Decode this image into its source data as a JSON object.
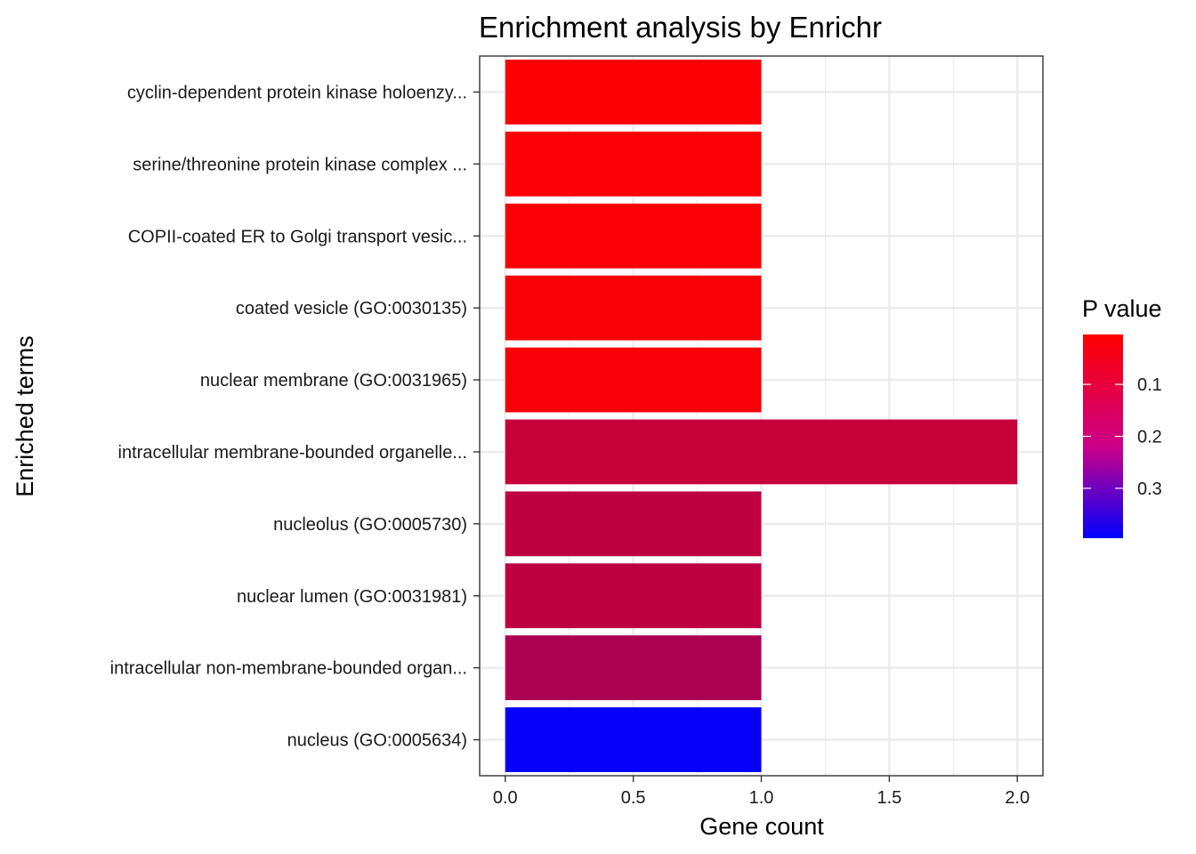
{
  "chart_data": {
    "type": "bar",
    "orientation": "horizontal",
    "title": "Enrichment analysis by Enrichr",
    "xlabel": "Gene count",
    "ylabel": "Enriched terms",
    "xlim": [
      -0.1,
      2.1
    ],
    "xticks": [
      0.0,
      0.5,
      1.0,
      1.5,
      2.0
    ],
    "xtick_labels": [
      "0.0",
      "0.5",
      "1.0",
      "1.5",
      "2.0"
    ],
    "grid": true,
    "categories": [
      "cyclin-dependent protein kinase holoenzy...",
      "serine/threonine protein kinase complex ...",
      "COPII-coated ER to Golgi transport vesic...",
      "coated vesicle (GO:0030135)",
      "nuclear membrane (GO:0031965)",
      "intracellular membrane-bounded organelle...",
      "nucleolus (GO:0005730)",
      "nuclear lumen (GO:0031981)",
      "intracellular non-membrane-bounded organ...",
      "nucleus (GO:0005634)"
    ],
    "values": [
      1,
      1,
      1,
      1,
      1,
      2,
      1,
      1,
      1,
      1
    ],
    "p_values": [
      0.005,
      0.006,
      0.008,
      0.01,
      0.012,
      0.09,
      0.1,
      0.1,
      0.13,
      0.39
    ],
    "colorbar": {
      "title": "P value",
      "range": [
        0.0,
        0.4
      ],
      "ticks": [
        0.1,
        0.2,
        0.3
      ],
      "tick_labels": [
        "0.1",
        "0.2",
        "0.3"
      ],
      "low_color": "#ff0000",
      "high_color": "#0000ff",
      "position": "right"
    }
  }
}
